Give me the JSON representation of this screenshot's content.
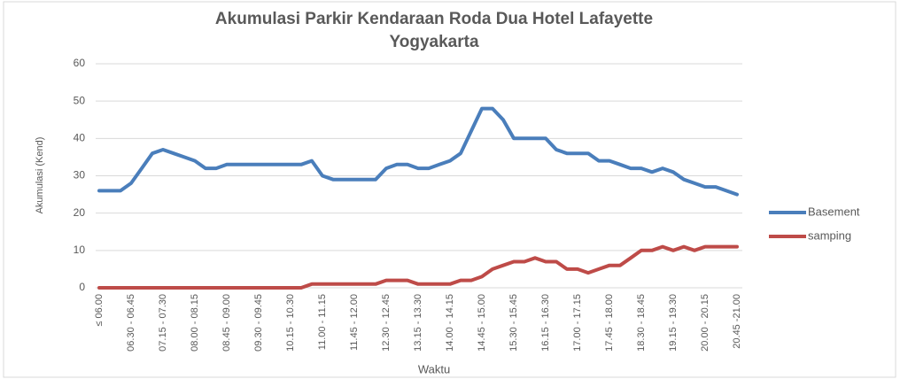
{
  "chart_data": {
    "type": "line",
    "title": [
      "Akumulasi Parkir Kendaraan Roda Dua Hotel Lafayette",
      "Yogyakarta"
    ],
    "xlabel": "Waktu",
    "ylabel": "Akumulasi (Kend)",
    "categories": [
      "≤ 06.00",
      null,
      null,
      "06.30 - 06.45",
      null,
      null,
      "07.15 - 07.30",
      null,
      null,
      "08.00 - 08.15",
      null,
      null,
      "08.45 - 09.00",
      null,
      null,
      "09.30 - 09.45",
      null,
      null,
      "10.15 - 10.30",
      null,
      null,
      "11.00 - 11.15",
      null,
      null,
      "11.45 - 12.00",
      null,
      null,
      "12.30 - 12.45",
      null,
      null,
      "13.15 - 13.30",
      null,
      null,
      "14.00 - 14.15",
      null,
      null,
      "14.45 - 15.00",
      null,
      null,
      "15.30 - 15.45",
      null,
      null,
      "16.15 - 16.30",
      null,
      null,
      "17.00 - 17.15",
      null,
      null,
      "17.45 - 18.00",
      null,
      null,
      "18.30 - 18.45",
      null,
      null,
      "19.15 - 19.30",
      null,
      null,
      "20.00 - 20.15",
      null,
      null,
      "20.45 -21.00"
    ],
    "series": [
      {
        "name": "Basement",
        "color": "#4a7ebb",
        "values": [
          26,
          26,
          26,
          28,
          32,
          36,
          37,
          36,
          35,
          34,
          32,
          32,
          33,
          33,
          33,
          33,
          33,
          33,
          33,
          33,
          34,
          30,
          29,
          29,
          29,
          29,
          29,
          32,
          33,
          33,
          32,
          32,
          33,
          34,
          36,
          42,
          48,
          48,
          45,
          40,
          40,
          40,
          40,
          37,
          36,
          36,
          36,
          34,
          34,
          33,
          32,
          32,
          31,
          32,
          31,
          29,
          28,
          27,
          27,
          26,
          25
        ]
      },
      {
        "name": "samping",
        "color": "#be4b48",
        "values": [
          0,
          0,
          0,
          0,
          0,
          0,
          0,
          0,
          0,
          0,
          0,
          0,
          0,
          0,
          0,
          0,
          0,
          0,
          0,
          0,
          1,
          1,
          1,
          1,
          1,
          1,
          1,
          2,
          2,
          2,
          1,
          1,
          1,
          1,
          2,
          2,
          3,
          5,
          6,
          7,
          7,
          8,
          7,
          7,
          5,
          5,
          4,
          5,
          6,
          6,
          8,
          10,
          10,
          11,
          10,
          11,
          10,
          11,
          11,
          11,
          11
        ]
      }
    ],
    "ylim": [
      0,
      60
    ],
    "yticks": [
      0,
      10,
      20,
      30,
      40,
      50,
      60
    ],
    "grid": true,
    "legend": "right"
  }
}
